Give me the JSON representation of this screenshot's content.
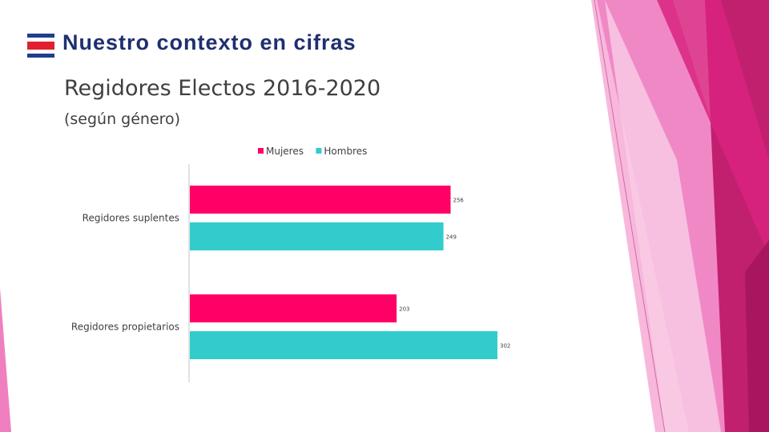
{
  "slide": {
    "title": "Nuestro contexto en cifras",
    "flag_icon": "costa-rica-flag-icon",
    "accent_colors": [
      "#e6007e",
      "#f07fc0",
      "#c1206f"
    ]
  },
  "chart_data": {
    "type": "bar",
    "orientation": "horizontal",
    "title": "Regidores Electos 2016-2020",
    "subtitle": "(según género)",
    "categories": [
      "Regidores suplentes",
      "Regidores propietarios"
    ],
    "series": [
      {
        "name": "Mujeres",
        "color": "#ff0066",
        "values": [
          256,
          203
        ]
      },
      {
        "name": "Hombres",
        "color": "#33cccc",
        "values": [
          249,
          302
        ]
      }
    ],
    "xlim": [
      0,
      302
    ],
    "legend_position": "top",
    "grid": false
  }
}
